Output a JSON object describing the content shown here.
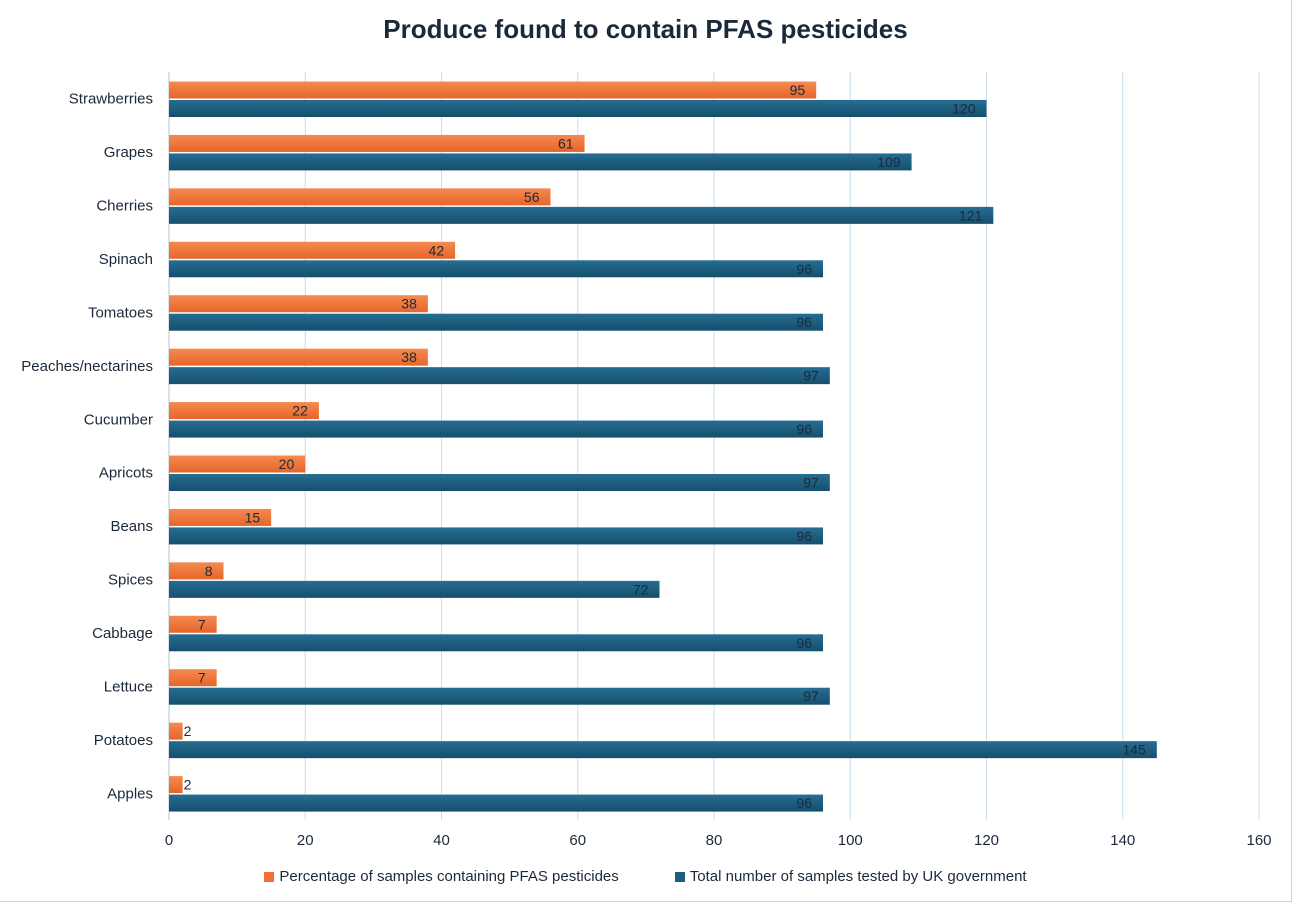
{
  "chart_data": {
    "type": "bar",
    "orientation": "horizontal",
    "title": "Produce found to contain PFAS pesticides",
    "categories": [
      "Strawberries",
      "Grapes",
      "Cherries",
      "Spinach",
      "Tomatoes",
      "Peaches/nectarines",
      "Cucumber",
      "Apricots",
      "Beans",
      "Spices",
      "Cabbage",
      "Lettuce",
      "Potatoes",
      "Apples"
    ],
    "series": [
      {
        "name": "Percentage of samples containing PFAS pesticides",
        "color": "#ef7134",
        "values": [
          95,
          61,
          56,
          42,
          38,
          38,
          22,
          20,
          15,
          8,
          7,
          7,
          2,
          2
        ]
      },
      {
        "name": "Total number of samples tested by UK government",
        "color": "#1c5f82",
        "values": [
          120,
          109,
          121,
          96,
          96,
          97,
          96,
          97,
          96,
          72,
          96,
          97,
          145,
          96
        ]
      }
    ],
    "xlim": [
      0,
      160
    ],
    "xticks": [
      "0",
      "20",
      "40",
      "60",
      "80",
      "100",
      "120",
      "140",
      "160"
    ],
    "grid": "vertical",
    "legend": "bottom"
  }
}
